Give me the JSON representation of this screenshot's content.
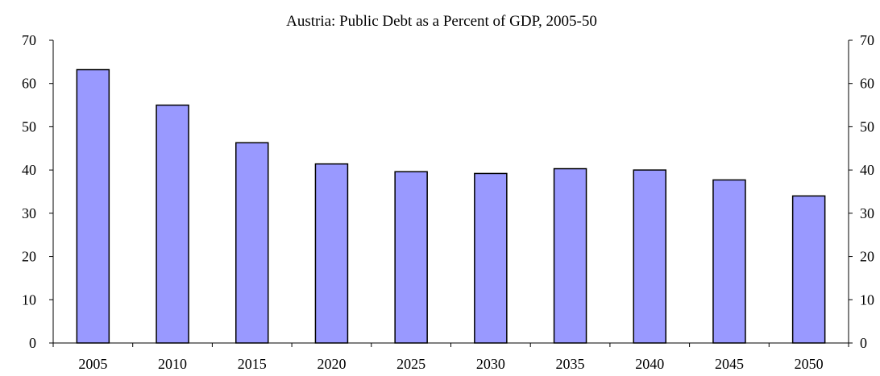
{
  "chart_data": {
    "type": "bar",
    "title": "Austria: Public Debt as a Percent of GDP, 2005-50",
    "categories": [
      "2005",
      "2010",
      "2015",
      "2020",
      "2025",
      "2030",
      "2035",
      "2040",
      "2045",
      "2050"
    ],
    "values": [
      63.2,
      55.0,
      46.3,
      41.4,
      39.6,
      39.2,
      40.3,
      40.0,
      37.7,
      34.0
    ],
    "xlabel": "",
    "ylabel": "",
    "ylim": [
      0,
      70
    ],
    "yticks": [
      "0",
      "10",
      "20",
      "30",
      "40",
      "50",
      "60",
      "70"
    ],
    "secondary_y_axis": true,
    "grid": false,
    "bar_color": "#9999ff",
    "bar_outline": "#000000"
  }
}
